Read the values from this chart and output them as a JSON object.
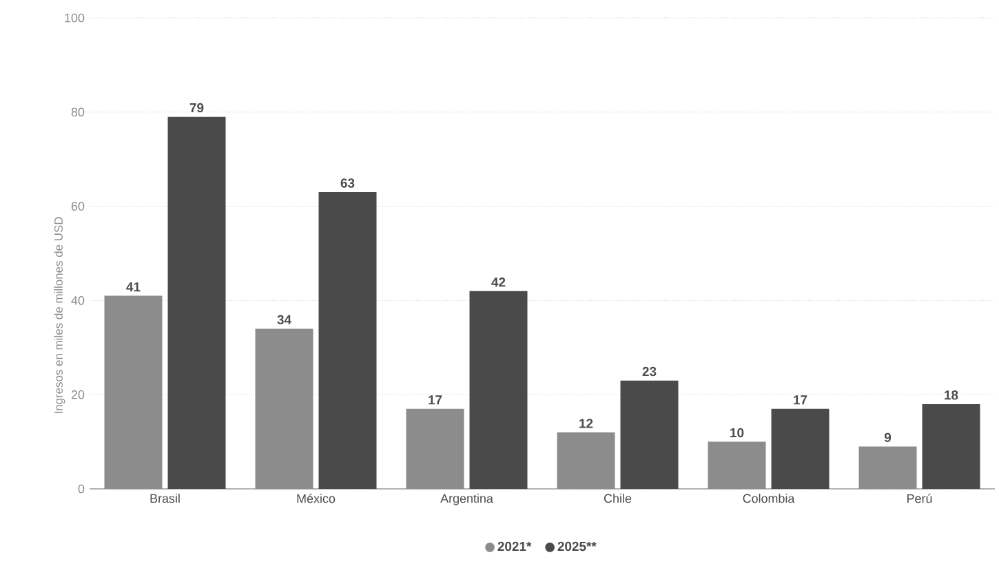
{
  "chart_data": {
    "type": "bar",
    "ylabel": "Ingresos en miles de millones de USD",
    "categories": [
      "Brasil",
      "México",
      "Argentina",
      "Chile",
      "Colombia",
      "Perú"
    ],
    "series": [
      {
        "name": "2021*",
        "color": "#8c8c8c",
        "values": [
          41,
          34,
          17,
          12,
          10,
          9
        ]
      },
      {
        "name": "2025**",
        "color": "#4a4a4a",
        "values": [
          79,
          63,
          42,
          23,
          17,
          18
        ]
      }
    ],
    "ylim": [
      0,
      100
    ],
    "yticks": [
      0,
      20,
      40,
      60,
      80,
      100
    ],
    "grid": "y",
    "legend": "bottom",
    "data_labels": true
  }
}
